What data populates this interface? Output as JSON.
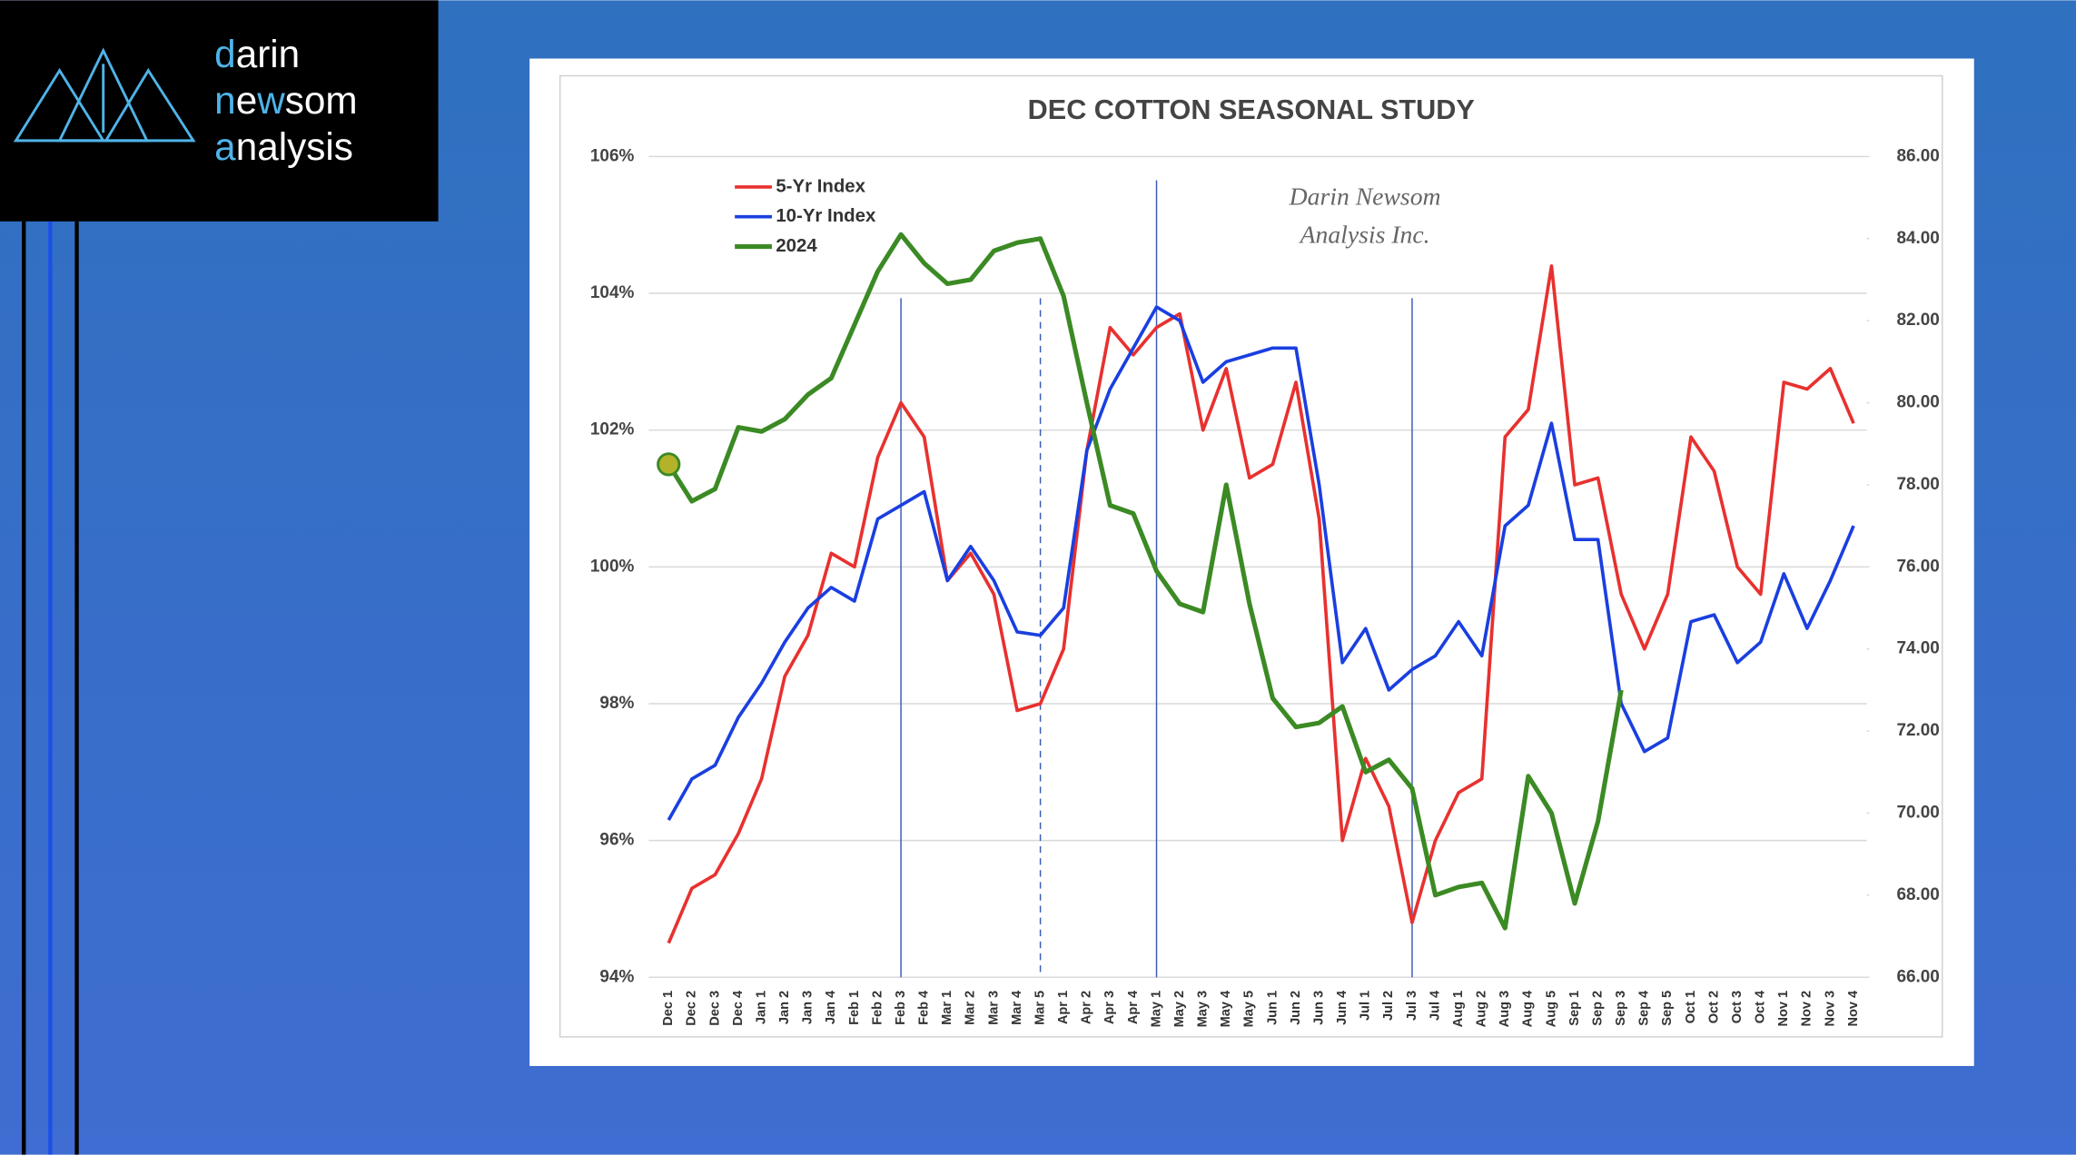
{
  "logo": {
    "lines": [
      [
        {
          "text": "d",
          "accent": true
        },
        {
          "text": "arin",
          "accent": false
        }
      ],
      [
        {
          "text": "n",
          "accent": true
        },
        {
          "text": "e",
          "accent": false
        },
        {
          "text": "w",
          "accent": true
        },
        {
          "text": "som",
          "accent": false
        }
      ],
      [
        {
          "text": "a",
          "accent": true
        },
        {
          "text": "nalysis",
          "accent": false
        }
      ]
    ]
  },
  "chart_data": {
    "type": "line",
    "title": "DEC COTTON SEASONAL STUDY",
    "watermark": [
      "Darin Newsom",
      "Analysis Inc."
    ],
    "categories": [
      "Dec 1",
      "Dec 2",
      "Dec 3",
      "Dec 4",
      "Jan 1",
      "Jan 2",
      "Jan 3",
      "Jan 4",
      "Feb 1",
      "Feb 2",
      "Feb 3",
      "Feb 4",
      "Mar 1",
      "Mar 2",
      "Mar 3",
      "Mar 4",
      "Mar 5",
      "Apr 1",
      "Apr 2",
      "Apr 3",
      "Apr 4",
      "May 1",
      "May 2",
      "May 3",
      "May 4",
      "May 5",
      "Jun 1",
      "Jun 2",
      "Jun 3",
      "Jun 4",
      "Jul 1",
      "Jul 2",
      "Jul 3",
      "Jul 4",
      "Aug 1",
      "Aug 2",
      "Aug 3",
      "Aug 4",
      "Aug 5",
      "Sep 1",
      "Sep 2",
      "Sep 3",
      "Sep 4",
      "Sep 5",
      "Oct 1",
      "Oct 2",
      "Oct 3",
      "Oct 4",
      "Nov 1",
      "Nov 2",
      "Nov 3",
      "Nov 4"
    ],
    "series": [
      {
        "name": "5-Yr Index",
        "color": "#e8312f",
        "axis": "y",
        "values": [
          94.5,
          95.3,
          95.5,
          96.1,
          96.9,
          98.4,
          99.0,
          100.2,
          100.0,
          101.6,
          102.4,
          101.9,
          99.8,
          100.2,
          99.6,
          97.9,
          98.0,
          98.8,
          101.7,
          103.5,
          103.1,
          103.5,
          103.7,
          102.0,
          102.9,
          101.3,
          101.5,
          102.7,
          100.7,
          96.0,
          97.2,
          96.5,
          94.8,
          96.0,
          96.7,
          96.9,
          101.9,
          102.3,
          104.4,
          101.2,
          101.3,
          99.6,
          98.8,
          99.6,
          101.9,
          101.4,
          100.0,
          99.6,
          102.7,
          102.6,
          102.9,
          102.1
        ]
      },
      {
        "name": "10-Yr Index",
        "color": "#1a3fe0",
        "axis": "y",
        "values": [
          96.3,
          96.9,
          97.1,
          97.8,
          98.3,
          98.9,
          99.4,
          99.7,
          99.5,
          100.7,
          100.9,
          101.1,
          99.8,
          100.3,
          99.8,
          99.05,
          99.0,
          99.4,
          101.7,
          102.6,
          103.2,
          103.8,
          103.6,
          102.7,
          103.0,
          103.1,
          103.2,
          103.2,
          101.2,
          98.6,
          99.1,
          98.2,
          98.5,
          98.7,
          99.2,
          98.7,
          100.6,
          100.9,
          102.1,
          100.4,
          100.4,
          98.0,
          97.3,
          97.5,
          99.2,
          99.3,
          98.6,
          98.9,
          99.9,
          99.1,
          99.8,
          100.6
        ]
      },
      {
        "name": "2024",
        "color": "#3b8a24",
        "axis": "y2",
        "marker_color": "#b3b22a",
        "values": [
          78.5,
          77.6,
          77.9,
          79.4,
          79.3,
          79.6,
          80.2,
          80.6,
          81.9,
          83.2,
          84.1,
          83.4,
          82.9,
          83.0,
          83.7,
          83.9,
          84.0,
          82.6,
          80.0,
          77.5,
          77.3,
          75.9,
          75.1,
          74.9,
          78.0,
          75.1,
          72.8,
          72.1,
          72.2,
          72.6,
          71.0,
          71.3,
          70.6,
          68.0,
          68.2,
          68.3,
          67.2,
          70.9,
          70.0,
          67.8,
          69.8,
          73.0,
          null,
          null,
          null,
          null,
          null,
          null,
          null,
          null,
          null,
          null
        ]
      }
    ],
    "ylim": [
      94,
      106
    ],
    "yticks": [
      {
        "value": 94,
        "label": "94%"
      },
      {
        "value": 96,
        "label": "96%"
      },
      {
        "value": 98,
        "label": "98%"
      },
      {
        "value": 100,
        "label": "100%"
      },
      {
        "value": 102,
        "label": "102%"
      },
      {
        "value": 104,
        "label": "104%"
      },
      {
        "value": 106,
        "label": "106%"
      }
    ],
    "y2lim": [
      66,
      86
    ],
    "y2ticks": [
      {
        "value": 66,
        "label": "66.00"
      },
      {
        "value": 68,
        "label": "68.00"
      },
      {
        "value": 70,
        "label": "70.00"
      },
      {
        "value": 72,
        "label": "72.00"
      },
      {
        "value": 74,
        "label": "74.00"
      },
      {
        "value": 76,
        "label": "76.00"
      },
      {
        "value": 78,
        "label": "78.00"
      },
      {
        "value": 80,
        "label": "80.00"
      },
      {
        "value": 82,
        "label": "82.00"
      },
      {
        "value": 84,
        "label": "84.00"
      },
      {
        "value": 86,
        "label": "86.00"
      }
    ],
    "grid": true,
    "legend": "upper left",
    "vlines": [
      {
        "category": "Feb 3",
        "dashed": false
      },
      {
        "category": "Mar 5",
        "dashed": true
      },
      {
        "category": "May 1",
        "dashed": false
      },
      {
        "category": "Jul 3",
        "dashed": false
      }
    ]
  }
}
